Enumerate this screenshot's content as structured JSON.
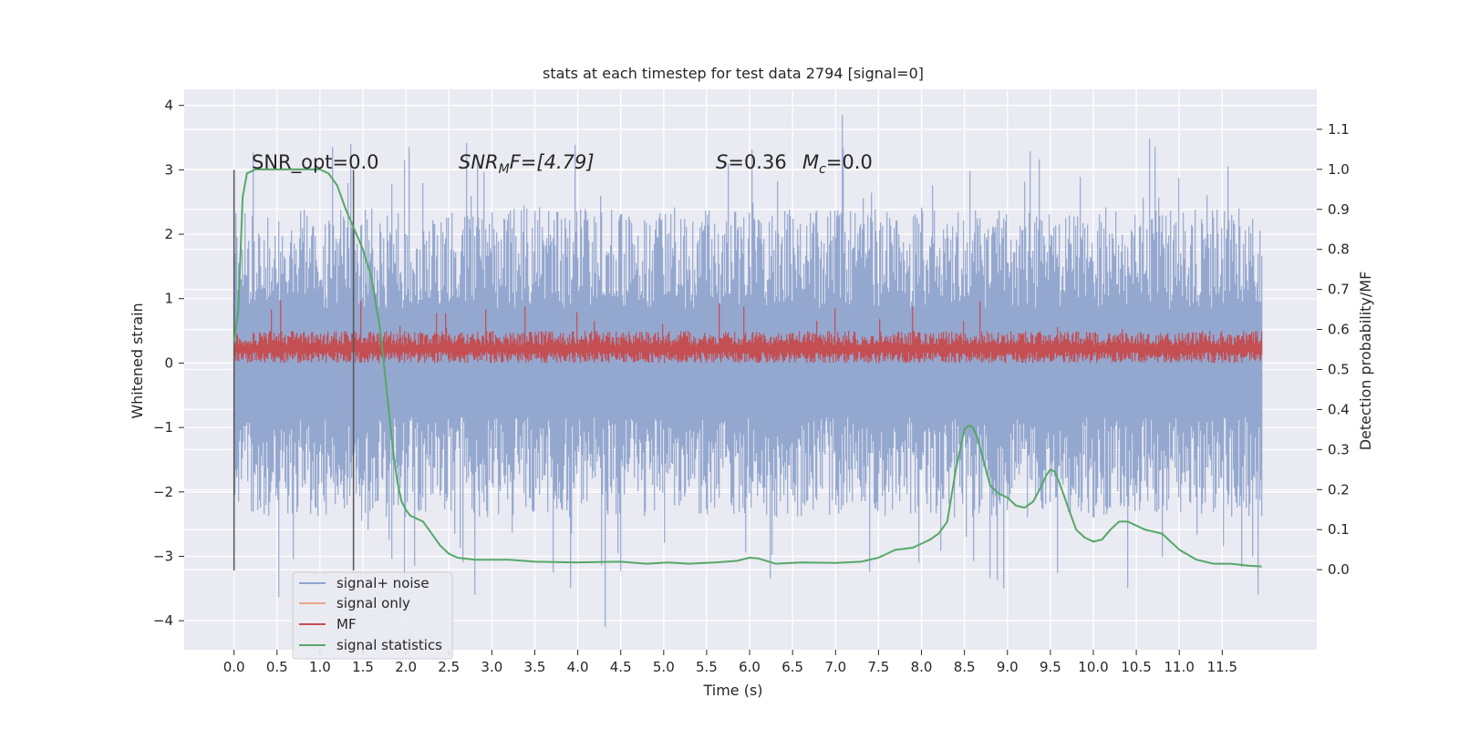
{
  "chart_data": {
    "type": "line",
    "title": "stats at each timestep for test data 2794 [signal=0]",
    "xlabel": "Time (s)",
    "ylabel": "Whitened strain",
    "ylabel_right": "Detection probability/MF",
    "xlim": [
      -0.58,
      12.6
    ],
    "ylim": [
      -4.45,
      4.25
    ],
    "ylim_right": [
      -0.2,
      1.2
    ],
    "x_ticks": [
      "0.0",
      "0.5",
      "1.0",
      "1.5",
      "2.0",
      "2.5",
      "3.0",
      "3.5",
      "4.0",
      "4.5",
      "5.0",
      "5.5",
      "6.0",
      "6.5",
      "7.0",
      "7.5",
      "8.0",
      "8.5",
      "9.0",
      "9.5",
      "10.0",
      "10.5",
      "11.0",
      "11.5"
    ],
    "y_ticks": [
      "−4",
      "−3",
      "−2",
      "−1",
      "0",
      "1",
      "2",
      "3",
      "4"
    ],
    "y_right_ticks": [
      "0.0",
      "0.1",
      "0.2",
      "0.3",
      "0.4",
      "0.5",
      "0.6",
      "0.7",
      "0.8",
      "0.9",
      "1.0",
      "1.1"
    ],
    "grid": true,
    "legend_position": "lower-left",
    "annotations": {
      "snr_opt": "SNR_opt=0.0",
      "snr_mf_prefix": "SNR",
      "snr_mf_sub": "M",
      "snr_mf_suffix": "F=[4.79]",
      "s_label": "S",
      "s_value": "=0.36",
      "mc_label": "M",
      "mc_sub": "c",
      "mc_value": "=0.0"
    },
    "vertical_lines": [
      {
        "x": 0.0,
        "y_range": [
          -3.22,
          3.0
        ]
      },
      {
        "x": 1.39,
        "y_range": [
          -3.22,
          3.0
        ]
      }
    ],
    "series": [
      {
        "name": "signal+ noise",
        "color": "#8fa3cc",
        "envelope": {
          "x_range": [
            0.0,
            11.96
          ],
          "typical_upper": 2.4,
          "typical_lower": -2.4,
          "max": 3.85,
          "min": -4.1
        }
      },
      {
        "name": "signal only",
        "color": "#e8a582",
        "values_flat": 0
      },
      {
        "name": "MF",
        "color": "#c44e52",
        "envelope": {
          "x_range": [
            0.0,
            11.96
          ],
          "typical_upper": 0.5,
          "typical_lower": 0.0,
          "max": 1.0,
          "min": -0.05
        }
      },
      {
        "name": "signal statistics",
        "color": "#55a868",
        "axis": "right",
        "x": [
          0.0,
          0.05,
          0.1,
          0.15,
          0.25,
          0.4,
          0.6,
          0.8,
          0.9,
          1.0,
          1.1,
          1.2,
          1.3,
          1.4,
          1.5,
          1.6,
          1.7,
          1.75,
          1.8,
          1.85,
          1.9,
          1.95,
          2.0,
          2.05,
          2.1,
          2.2,
          2.3,
          2.4,
          2.5,
          2.6,
          2.8,
          3.0,
          3.2,
          3.5,
          4.0,
          4.5,
          4.8,
          5.05,
          5.3,
          5.6,
          5.85,
          6.0,
          6.1,
          6.3,
          6.6,
          7.0,
          7.3,
          7.5,
          7.6,
          7.7,
          7.8,
          7.9,
          8.0,
          8.1,
          8.2,
          8.3,
          8.4,
          8.45,
          8.5,
          8.55,
          8.6,
          8.65,
          8.7,
          8.8,
          8.9,
          9.0,
          9.1,
          9.2,
          9.3,
          9.35,
          9.4,
          9.45,
          9.5,
          9.55,
          9.6,
          9.7,
          9.8,
          9.9,
          10.0,
          10.1,
          10.2,
          10.3,
          10.4,
          10.6,
          10.8,
          11.0,
          11.2,
          11.4,
          11.6,
          11.8,
          11.96
        ],
        "values": [
          0.57,
          0.65,
          0.93,
          0.99,
          1.0,
          1.0,
          1.0,
          1.0,
          1.0,
          1.0,
          0.99,
          0.96,
          0.9,
          0.85,
          0.8,
          0.73,
          0.6,
          0.5,
          0.4,
          0.3,
          0.22,
          0.17,
          0.15,
          0.135,
          0.13,
          0.12,
          0.09,
          0.06,
          0.04,
          0.03,
          0.025,
          0.025,
          0.025,
          0.02,
          0.018,
          0.02,
          0.015,
          0.018,
          0.015,
          0.018,
          0.022,
          0.03,
          0.028,
          0.015,
          0.018,
          0.017,
          0.02,
          0.03,
          0.04,
          0.05,
          0.052,
          0.055,
          0.065,
          0.075,
          0.09,
          0.12,
          0.25,
          0.3,
          0.35,
          0.36,
          0.355,
          0.33,
          0.29,
          0.21,
          0.19,
          0.18,
          0.16,
          0.155,
          0.17,
          0.19,
          0.21,
          0.235,
          0.25,
          0.245,
          0.22,
          0.16,
          0.1,
          0.08,
          0.07,
          0.075,
          0.1,
          0.12,
          0.12,
          0.1,
          0.09,
          0.05,
          0.025,
          0.015,
          0.015,
          0.01,
          0.008
        ]
      }
    ]
  }
}
